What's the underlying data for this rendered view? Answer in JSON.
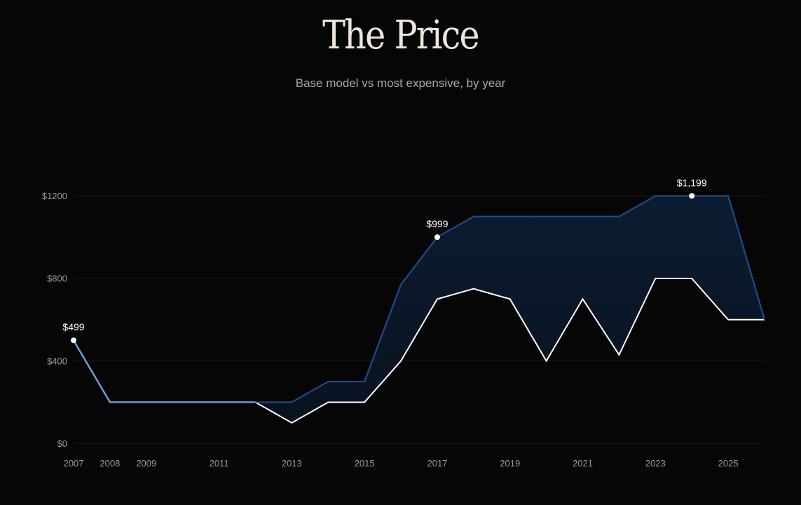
{
  "title": "The Price",
  "subtitle": "Base model vs most expensive, by year",
  "colors": {
    "background": "#060607",
    "max_line": "#1e4b8a",
    "max_line_early": "#6f9fd6",
    "base_line": "#ffffff",
    "fill": "#0c1d33",
    "grid": "#1c1c22"
  },
  "chart_data": {
    "type": "area",
    "title": "The Price",
    "subtitle": "Base model vs most expensive, by year",
    "xlabel": "",
    "ylabel": "",
    "x": [
      2007,
      2008,
      2009,
      2010,
      2011,
      2012,
      2013,
      2014,
      2015,
      2016,
      2017,
      2018,
      2019,
      2020,
      2021,
      2022,
      2023,
      2024,
      2025,
      2026
    ],
    "series": [
      {
        "name": "Most expensive",
        "values": [
          499,
          199,
          199,
          199,
          199,
          199,
          199,
          299,
          299,
          769,
          999,
          1099,
          1099,
          1099,
          1099,
          1099,
          1199,
          1199,
          1199,
          599
        ]
      },
      {
        "name": "Base model",
        "values": [
          499,
          199,
          199,
          199,
          199,
          199,
          99,
          199,
          199,
          399,
          699,
          749,
          699,
          399,
          699,
          429,
          799,
          799,
          599,
          599
        ]
      }
    ],
    "ylim": [
      0,
      1200
    ],
    "y_ticks": [
      0,
      400,
      800,
      1200
    ],
    "y_tick_labels": [
      "$0",
      "$400",
      "$800",
      "$1200"
    ],
    "x_tick_labels": [
      "2007",
      "2008",
      "2009",
      "2011",
      "2013",
      "2015",
      "2017",
      "2019",
      "2021",
      "2023",
      "2025"
    ],
    "annotations": [
      {
        "year": 2007,
        "value": 499,
        "label": "$499"
      },
      {
        "year": 2017,
        "value": 999,
        "label": "$999"
      },
      {
        "year": 2024,
        "value": 1199,
        "label": "$1,199"
      }
    ],
    "grid": true
  }
}
